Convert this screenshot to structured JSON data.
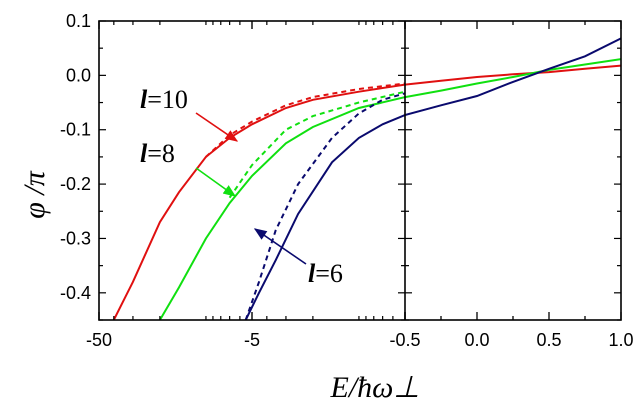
{
  "chart_data": {
    "type": "line",
    "ylabel": "φ /π",
    "xlabel": "E/ħω⊥",
    "ylim": [
      -0.45,
      0.1
    ],
    "yticks": [
      "0.1",
      "0.0",
      "-0.1",
      "-0.2",
      "-0.3",
      "-0.4"
    ],
    "panels": [
      {
        "name": "left",
        "xticks": [
          "-50",
          "-5",
          "-0.5"
        ],
        "x_scale": "reversed-log of -E (from -50 to -0.5)"
      },
      {
        "name": "right",
        "xticks": [
          "-0.5",
          "0.0",
          "0.5",
          "1.0"
        ],
        "x_scale": "linear",
        "xlim": [
          -0.5,
          1.0
        ]
      }
    ],
    "series": [
      {
        "name": "l=10",
        "label": "l=10",
        "color": "#e01010",
        "solid": [
          [
            -40,
            -0.45
          ],
          [
            -30,
            -0.38
          ],
          [
            -20,
            -0.27
          ],
          [
            -15,
            -0.215
          ],
          [
            -10,
            -0.15
          ],
          [
            -7,
            -0.115
          ],
          [
            -5,
            -0.09
          ],
          [
            -3,
            -0.06
          ],
          [
            -2,
            -0.045
          ],
          [
            -1,
            -0.03
          ],
          [
            -0.5,
            -0.017
          ],
          [
            -0.25,
            -0.01
          ],
          [
            0.0,
            -0.003
          ],
          [
            0.25,
            0.002
          ],
          [
            0.5,
            0.006
          ],
          [
            0.75,
            0.012
          ],
          [
            1.0,
            0.018
          ]
        ],
        "dashed": [
          [
            -10,
            -0.15
          ],
          [
            -7,
            -0.11
          ],
          [
            -5,
            -0.085
          ],
          [
            -3,
            -0.055
          ],
          [
            -2,
            -0.04
          ],
          [
            -1,
            -0.025
          ],
          [
            -0.5,
            -0.015
          ]
        ]
      },
      {
        "name": "l=8",
        "label": "l=8",
        "color": "#10e010",
        "solid": [
          [
            -20,
            -0.45
          ],
          [
            -15,
            -0.39
          ],
          [
            -10,
            -0.3
          ],
          [
            -7,
            -0.235
          ],
          [
            -5,
            -0.185
          ],
          [
            -3,
            -0.125
          ],
          [
            -2,
            -0.095
          ],
          [
            -1,
            -0.06
          ],
          [
            -0.5,
            -0.04
          ],
          [
            -0.25,
            -0.028
          ],
          [
            0.0,
            -0.015
          ],
          [
            0.25,
            -0.003
          ],
          [
            0.5,
            0.01
          ],
          [
            0.75,
            0.02
          ],
          [
            1.0,
            0.03
          ]
        ],
        "dashed": [
          [
            -7,
            -0.225
          ],
          [
            -5,
            -0.165
          ],
          [
            -3,
            -0.1
          ],
          [
            -2,
            -0.075
          ],
          [
            -1,
            -0.05
          ],
          [
            -0.5,
            -0.03
          ]
        ]
      },
      {
        "name": "l=6",
        "label": "l=6",
        "color": "#0a0a6e",
        "solid": [
          [
            -5.5,
            -0.45
          ],
          [
            -4.5,
            -0.4
          ],
          [
            -3.5,
            -0.34
          ],
          [
            -2.5,
            -0.255
          ],
          [
            -1.5,
            -0.16
          ],
          [
            -1,
            -0.115
          ],
          [
            -0.7,
            -0.09
          ],
          [
            -0.5,
            -0.073
          ],
          [
            -0.25,
            -0.055
          ],
          [
            0.0,
            -0.038
          ],
          [
            0.25,
            -0.012
          ],
          [
            0.5,
            0.012
          ],
          [
            0.75,
            0.035
          ],
          [
            1.0,
            0.068
          ]
        ],
        "dashed": [
          [
            -5.5,
            -0.45
          ],
          [
            -4.5,
            -0.38
          ],
          [
            -3.5,
            -0.285
          ],
          [
            -2.5,
            -0.2
          ],
          [
            -1.5,
            -0.115
          ],
          [
            -1,
            -0.07
          ],
          [
            -0.7,
            -0.045
          ],
          [
            -0.5,
            -0.033
          ]
        ]
      }
    ],
    "annotations": [
      {
        "series": "l=10",
        "text": "l=10"
      },
      {
        "series": "l=8",
        "text": "l=8"
      },
      {
        "series": "l=6",
        "text": "l=6"
      }
    ]
  }
}
